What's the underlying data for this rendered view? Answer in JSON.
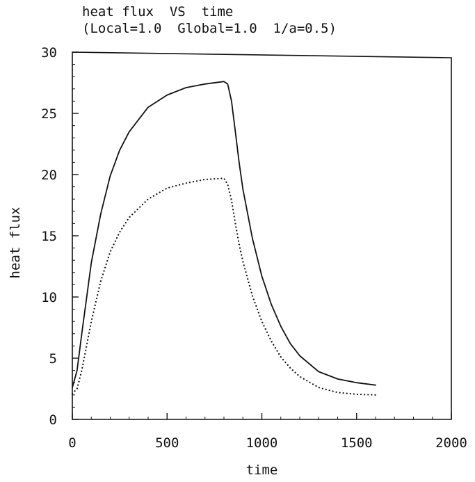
{
  "chart_data": {
    "type": "line",
    "title": "heat flux  VS  time",
    "subtitle": "(Local=1.0  Global=1.0  1/a=0.5)",
    "xlabel": "time",
    "ylabel": "heat flux",
    "xlim": [
      0,
      2000
    ],
    "ylim": [
      0,
      30
    ],
    "xticks": [
      0,
      500,
      1000,
      1500,
      2000
    ],
    "yticks": [
      0,
      5,
      10,
      15,
      20,
      25,
      30
    ],
    "grid": false,
    "series": [
      {
        "style": "solid",
        "color": "#111111",
        "x": [
          0,
          25,
          50,
          100,
          150,
          200,
          250,
          300,
          400,
          500,
          600,
          700,
          800,
          820,
          840,
          860,
          880,
          900,
          950,
          1000,
          1050,
          1100,
          1150,
          1200,
          1300,
          1400,
          1500,
          1600
        ],
        "y": [
          2.6,
          4.0,
          7.0,
          12.8,
          16.8,
          19.9,
          22.0,
          23.5,
          25.5,
          26.5,
          27.1,
          27.4,
          27.6,
          27.4,
          26.0,
          23.5,
          21.0,
          18.8,
          14.8,
          11.7,
          9.4,
          7.6,
          6.2,
          5.2,
          3.9,
          3.3,
          3.0,
          2.8
        ]
      },
      {
        "style": "dotted",
        "color": "#111111",
        "x": [
          0,
          25,
          50,
          100,
          150,
          200,
          250,
          300,
          400,
          500,
          600,
          700,
          800,
          820,
          840,
          860,
          880,
          900,
          950,
          1000,
          1050,
          1100,
          1150,
          1200,
          1300,
          1400,
          1500,
          1600
        ],
        "y": [
          2.1,
          2.5,
          4.0,
          8.0,
          11.3,
          13.7,
          15.3,
          16.5,
          18.0,
          18.9,
          19.3,
          19.6,
          19.7,
          19.2,
          17.9,
          16.0,
          14.3,
          12.9,
          10.1,
          8.0,
          6.4,
          5.1,
          4.2,
          3.5,
          2.6,
          2.2,
          2.05,
          2.0
        ]
      }
    ]
  }
}
